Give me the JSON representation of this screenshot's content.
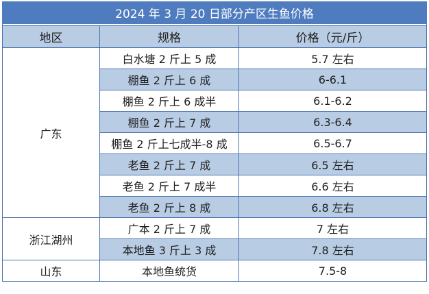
{
  "title": "2024 年 3 月 20 日部分产区生鱼价格",
  "headers": {
    "region": "地区",
    "spec": "规格",
    "price": "价格（元/斤）"
  },
  "colors": {
    "title_bg": "#4e7cbf",
    "header_bg": "#b8cce4",
    "shaded_row_bg": "#b8cce4",
    "border": "#4a72b0"
  },
  "groups": [
    {
      "region": "广东",
      "rows": [
        {
          "spec": "白水塘 2 斤上 5 成",
          "price": "5.7 左右",
          "shaded": false
        },
        {
          "spec": "棚鱼 2 斤上 6 成",
          "price": "6-6.1",
          "shaded": true
        },
        {
          "spec": "棚鱼 2 斤上 6 成半",
          "price": "6.1-6.2",
          "shaded": false
        },
        {
          "spec": "棚鱼 2 斤上 7 成",
          "price": "6.3-6.4",
          "shaded": true
        },
        {
          "spec": "棚鱼 2 斤上七成半-8 成",
          "price": "6.5-6.7",
          "shaded": false
        },
        {
          "spec": "老鱼 2 斤上 7 成",
          "price": "6.5 左右",
          "shaded": true
        },
        {
          "spec": "老鱼 2 斤上 7 成半",
          "price": "6.6 左右",
          "shaded": false
        },
        {
          "spec": "老鱼 2 斤上 8 成",
          "price": "6.8 左右",
          "shaded": true
        }
      ]
    },
    {
      "region": "浙江湖州",
      "rows": [
        {
          "spec": "广本 2 斤上 7 成",
          "price": "7 左右",
          "shaded": false
        },
        {
          "spec": "本地鱼 3 斤上 3 成",
          "price": "7.8 左右",
          "shaded": true
        }
      ]
    },
    {
      "region": "山东",
      "rows": [
        {
          "spec": "本地鱼统货",
          "price": "7.5-8",
          "shaded": false
        }
      ]
    }
  ]
}
